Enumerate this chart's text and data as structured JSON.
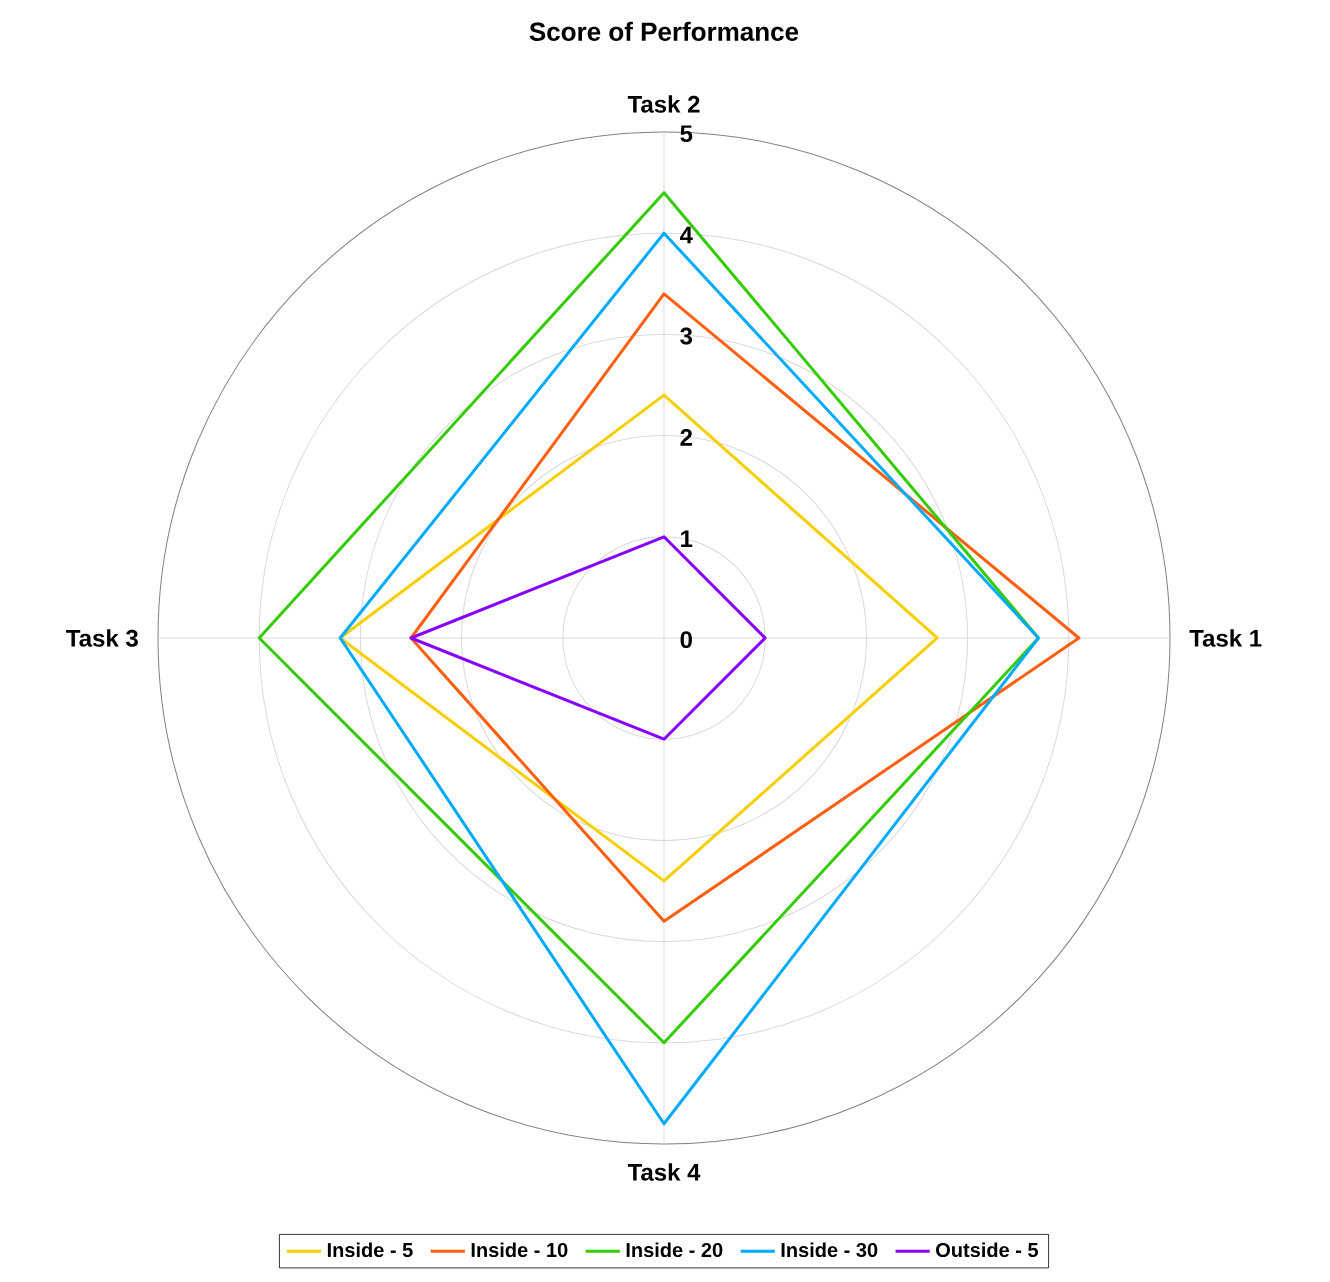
{
  "chart_data": {
    "type": "radar",
    "title": "Score of Performance",
    "categories": [
      "Task 2",
      "Task 1",
      "Task 4",
      "Task 3"
    ],
    "ylim": [
      0,
      5
    ],
    "yticks": [
      0,
      1,
      2,
      3,
      4,
      5
    ],
    "grid": true,
    "legend": "bottom",
    "marker": "none",
    "series": [
      {
        "name": "Inside - 5",
        "color": "#f5cf00",
        "values": [
          2.4,
          2.7,
          2.4,
          3.2
        ]
      },
      {
        "name": "Inside - 10",
        "color": "#ff5f0f",
        "values": [
          3.4,
          4.1,
          2.8,
          2.5
        ]
      },
      {
        "name": "Inside - 20",
        "color": "#33cc00",
        "values": [
          4.4,
          3.7,
          4.0,
          4.0
        ]
      },
      {
        "name": "Inside - 30",
        "color": "#00aaff",
        "values": [
          4.0,
          3.7,
          4.8,
          3.2
        ]
      },
      {
        "name": "Outside - 5",
        "color": "#8800ff",
        "values": [
          1.0,
          1.0,
          1.0,
          2.5
        ]
      }
    ]
  }
}
